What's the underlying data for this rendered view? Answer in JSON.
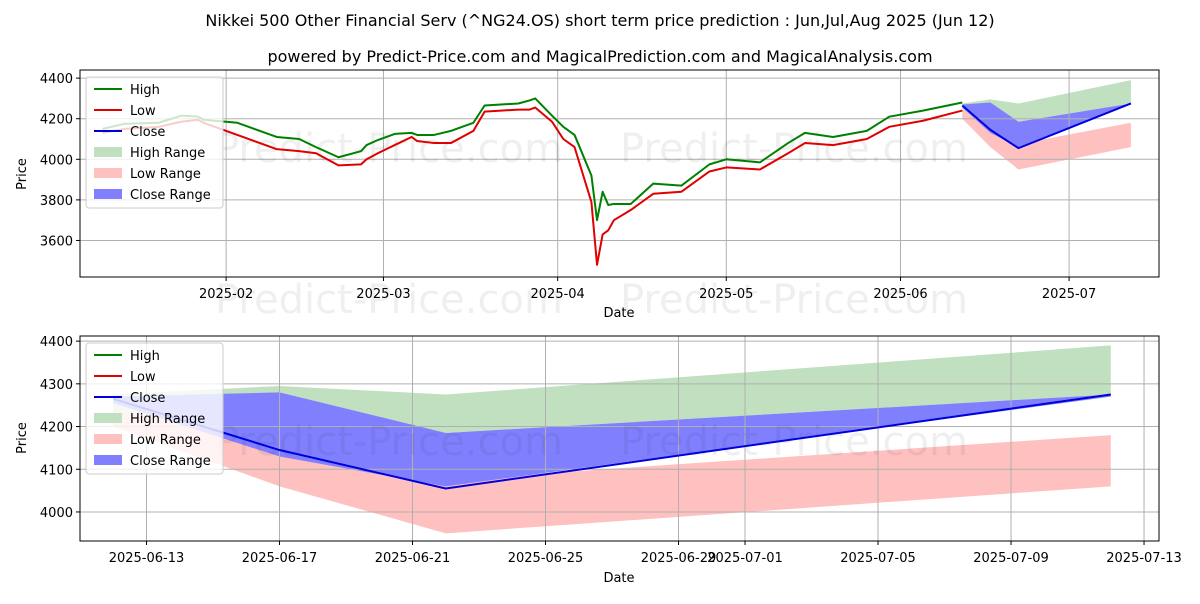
{
  "title": "Nikkei 500 Other Financial Serv (^NG24.OS) short term price prediction : Jun,Jul,Aug 2025 (Jun 12)",
  "subtitle": "powered by Predict-Price.com and MagicalPrediction.com and MagicalAnalysis.com",
  "watermark": "Predict-Price.com",
  "colors": {
    "high": "#008000",
    "low": "#e00000",
    "close": "#0000dd",
    "high_range": "#c0e0c0",
    "low_range": "#ffc0c0",
    "close_range": "#8080ff"
  },
  "chart_data": [
    {
      "type": "line",
      "xlabel": "Date",
      "ylabel": "Price",
      "ylim": [
        3420,
        4440
      ],
      "yticks": [
        3600,
        3800,
        4000,
        4200,
        4400
      ],
      "xticks": [
        "2025-02",
        "2025-03",
        "2025-04",
        "2025-05",
        "2025-06",
        "2025-07"
      ],
      "grid": true,
      "legend": [
        "High",
        "Low",
        "Close",
        "High Range",
        "Low Range",
        "Close Range"
      ],
      "legend_position": "top-left",
      "history": {
        "dates": [
          "2025-01-10",
          "2025-01-14",
          "2025-01-20",
          "2025-01-24",
          "2025-01-27",
          "2025-01-28",
          "2025-02-03",
          "2025-02-10",
          "2025-02-14",
          "2025-02-17",
          "2025-02-21",
          "2025-02-25",
          "2025-02-26",
          "2025-02-28",
          "2025-03-03",
          "2025-03-06",
          "2025-03-07",
          "2025-03-10",
          "2025-03-13",
          "2025-03-17",
          "2025-03-19",
          "2025-03-25",
          "2025-03-27",
          "2025-03-28",
          "2025-03-31",
          "2025-04-02",
          "2025-04-04",
          "2025-04-07",
          "2025-04-08",
          "2025-04-09",
          "2025-04-10",
          "2025-04-11",
          "2025-04-14",
          "2025-04-18",
          "2025-04-23",
          "2025-04-28",
          "2025-05-01",
          "2025-05-07",
          "2025-05-12",
          "2025-05-15",
          "2025-05-20",
          "2025-05-26",
          "2025-05-30",
          "2025-06-05",
          "2025-06-12"
        ],
        "high": [
          4150,
          4175,
          4180,
          4215,
          4210,
          4195,
          4180,
          4110,
          4100,
          4060,
          4010,
          4040,
          4070,
          4095,
          4125,
          4130,
          4120,
          4120,
          4140,
          4180,
          4265,
          4275,
          4290,
          4300,
          4215,
          4160,
          4120,
          3920,
          3700,
          3840,
          3775,
          3780,
          3780,
          3880,
          3870,
          3975,
          4000,
          3985,
          4080,
          4130,
          4110,
          4140,
          4210,
          4240,
          4280
        ],
        "low": [
          4130,
          4150,
          4160,
          4185,
          4195,
          4180,
          4120,
          4050,
          4040,
          4030,
          3970,
          3975,
          4000,
          4030,
          4070,
          4110,
          4090,
          4080,
          4080,
          4140,
          4235,
          4245,
          4245,
          4255,
          4185,
          4100,
          4060,
          3790,
          3480,
          3630,
          3650,
          3700,
          3750,
          3830,
          3840,
          3940,
          3960,
          3950,
          4030,
          4080,
          4070,
          4100,
          4160,
          4190,
          4240
        ]
      },
      "forecast": {
        "dates": [
          "2025-06-12",
          "2025-06-17",
          "2025-06-22",
          "2025-07-12"
        ],
        "high_range": {
          "upper": [
            4275,
            4295,
            4275,
            4390
          ],
          "lower": [
            4240,
            4185,
            4185,
            4275
          ]
        },
        "low_range": {
          "upper": [
            4240,
            4185,
            4075,
            4180
          ],
          "lower": [
            4200,
            4060,
            3950,
            4060
          ]
        },
        "close_range": {
          "upper": [
            4270,
            4280,
            4185,
            4275
          ],
          "lower": [
            4255,
            4130,
            4060,
            4270
          ]
        },
        "close": [
          4265,
          4145,
          4055,
          4275
        ]
      }
    },
    {
      "type": "line",
      "xlabel": "Date",
      "ylabel": "Price",
      "ylim": [
        3932,
        4412
      ],
      "yticks": [
        4000,
        4100,
        4200,
        4300,
        4400
      ],
      "xticks": [
        "2025-06-13",
        "2025-06-17",
        "2025-06-21",
        "2025-06-25",
        "2025-06-29",
        "2025-07-01",
        "2025-07-05",
        "2025-07-09",
        "2025-07-13"
      ],
      "grid": true,
      "legend": [
        "High",
        "Low",
        "Close",
        "High Range",
        "Low Range",
        "Close Range"
      ],
      "legend_position": "top-left"
    }
  ]
}
